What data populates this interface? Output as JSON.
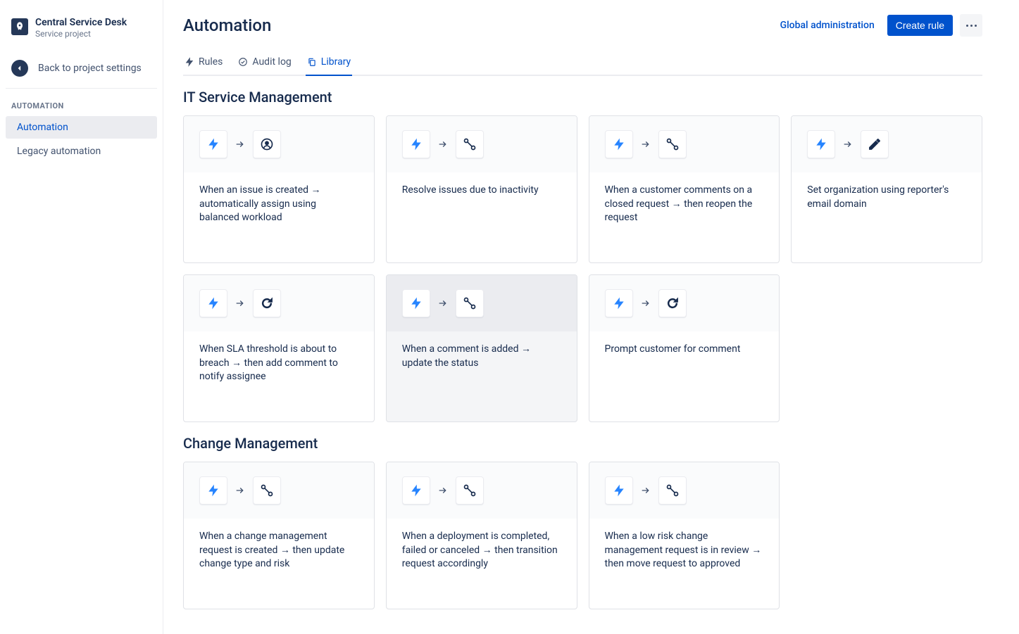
{
  "sidebar": {
    "project_title": "Central Service Desk",
    "project_subtitle": "Service project",
    "back_label": "Back to project settings",
    "section_label": "AUTOMATION",
    "nav": [
      {
        "label": "Automation",
        "active": true
      },
      {
        "label": "Legacy automation",
        "active": false
      }
    ]
  },
  "header": {
    "title": "Automation",
    "global_admin_label": "Global administration",
    "create_rule_label": "Create rule"
  },
  "tabs": [
    {
      "label": "Rules",
      "icon": "bolt",
      "active": false
    },
    {
      "label": "Audit log",
      "icon": "check-circle",
      "active": false
    },
    {
      "label": "Library",
      "icon": "copy",
      "active": true
    }
  ],
  "sections": [
    {
      "title": "IT Service Management",
      "cards": [
        {
          "icon2": "person",
          "text": "When an issue is created → automatically assign using balanced workload"
        },
        {
          "icon2": "transition",
          "text": "Resolve issues due to inactivity"
        },
        {
          "icon2": "transition",
          "text": "When a customer comments on a closed request → then reopen the request"
        },
        {
          "icon2": "pencil",
          "text": "Set organization using reporter's email domain"
        },
        {
          "icon2": "refresh",
          "text": "When SLA threshold is about to breach → then add comment to notify assignee"
        },
        {
          "icon2": "transition",
          "text": "When a comment is added → update the status",
          "hovered": true
        },
        {
          "icon2": "refresh",
          "text": "Prompt customer for comment"
        }
      ]
    },
    {
      "title": "Change Management",
      "cards": [
        {
          "icon2": "transition",
          "text": "When a change management request is created → then update change type and risk"
        },
        {
          "icon2": "transition",
          "text": "When a deployment is completed, failed or canceled → then transition request accordingly"
        },
        {
          "icon2": "transition",
          "text": "When a low risk change management request is in review → then move request to approved"
        }
      ]
    }
  ],
  "colors": {
    "primary": "#0052CC",
    "bolt": "#2684FF",
    "text": "#172B4D",
    "muted": "#6B778C",
    "border": "#dfe1e6"
  }
}
